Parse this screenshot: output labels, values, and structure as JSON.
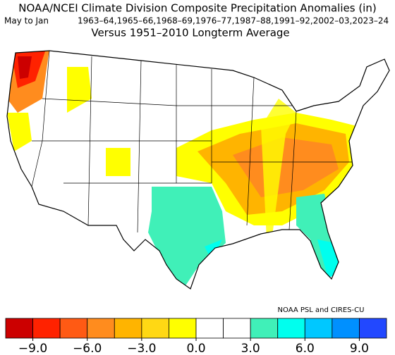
{
  "title": "NOAA/NCEI Climate Division Composite Precipitation Anomalies (in)",
  "period": "May to Jan",
  "years": "1963–64,1965–66,1968–69,1976–77,1987–88,1991–92,2002–03,2023–24",
  "subtitle": "Versus 1951–2010 Longterm Average",
  "credit": "NOAA PSL and CIRES-CU",
  "colorbar": {
    "bins": [
      -10.5,
      -9,
      -7.5,
      -6,
      -4.5,
      -3,
      -1.5,
      0,
      1.5,
      3,
      4.5,
      6,
      7.5,
      9,
      10.5
    ],
    "colors": [
      "#cc0000",
      "#ff2200",
      "#ff5a14",
      "#ff8c1e",
      "#ffb400",
      "#ffd814",
      "#ffff00",
      "#ffffff",
      "#ffffff",
      "#40f0b8",
      "#00ffee",
      "#00c8ff",
      "#0090ff",
      "#2248ff"
    ],
    "ticks": [
      {
        "value": -9,
        "label": "−9.0"
      },
      {
        "value": -6,
        "label": "−6.0"
      },
      {
        "value": -3,
        "label": "−3.0"
      },
      {
        "value": 0,
        "label": "0.0"
      },
      {
        "value": 3,
        "label": "3.0"
      },
      {
        "value": 6,
        "label": "6.0"
      },
      {
        "value": 9,
        "label": "9.0"
      }
    ]
  }
}
